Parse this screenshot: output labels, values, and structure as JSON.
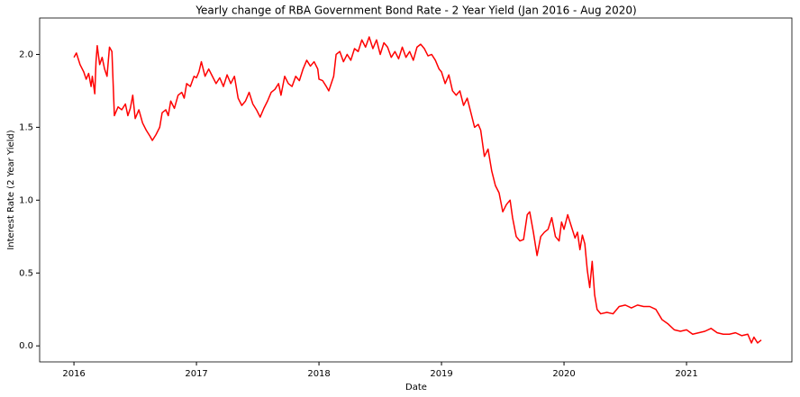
{
  "chart_data": {
    "type": "line",
    "title": "Yearly change of RBA Government Bond Rate - 2 Year Yield (Jan 2016 - Aug 2020)",
    "xlabel": "Date",
    "ylabel": "Interest Rate (2 Year Yield)",
    "xlim": [
      2015.72,
      2021.86
    ],
    "xticks": [
      2016,
      2017,
      2018,
      2019,
      2020,
      2021
    ],
    "ylim": [
      -0.11,
      2.25
    ],
    "yticks": [
      {
        "value": 0,
        "label": "0.0"
      },
      0.5,
      {
        "value": 1,
        "label": "1.0"
      },
      1.5,
      {
        "value": 2,
        "label": "2.0"
      }
    ],
    "grid": false,
    "series": [
      {
        "name": "2 Year Yield",
        "color": "#ff0000",
        "x": [
          2016.0,
          2016.02,
          2016.05,
          2016.08,
          2016.1,
          2016.12,
          2016.14,
          2016.15,
          2016.17,
          2016.18,
          2016.19,
          2016.21,
          2016.23,
          2016.25,
          2016.27,
          2016.29,
          2016.31,
          2016.33,
          2016.36,
          2016.39,
          2016.42,
          2016.44,
          2016.46,
          2016.48,
          2016.5,
          2016.53,
          2016.56,
          2016.59,
          2016.62,
          2016.64,
          2016.67,
          2016.7,
          2016.72,
          2016.75,
          2016.77,
          2016.79,
          2016.82,
          2016.85,
          2016.88,
          2016.9,
          2016.92,
          2016.95,
          2016.98,
          2017.0,
          2017.02,
          2017.04,
          2017.07,
          2017.1,
          2017.13,
          2017.16,
          2017.19,
          2017.22,
          2017.25,
          2017.28,
          2017.31,
          2017.34,
          2017.37,
          2017.4,
          2017.43,
          2017.46,
          2017.49,
          2017.52,
          2017.55,
          2017.58,
          2017.61,
          2017.64,
          2017.67,
          2017.69,
          2017.72,
          2017.75,
          2017.78,
          2017.81,
          2017.84,
          2017.87,
          2017.9,
          2017.93,
          2017.96,
          2017.99,
          2018.0,
          2018.03,
          2018.06,
          2018.08,
          2018.1,
          2018.12,
          2018.14,
          2018.17,
          2018.2,
          2018.23,
          2018.26,
          2018.29,
          2018.32,
          2018.35,
          2018.38,
          2018.41,
          2018.44,
          2018.47,
          2018.5,
          2018.53,
          2018.56,
          2018.59,
          2018.62,
          2018.65,
          2018.68,
          2018.71,
          2018.74,
          2018.77,
          2018.8,
          2018.83,
          2018.86,
          2018.89,
          2018.92,
          2018.95,
          2018.98,
          2019.0,
          2019.03,
          2019.06,
          2019.09,
          2019.12,
          2019.15,
          2019.18,
          2019.21,
          2019.24,
          2019.27,
          2019.3,
          2019.32,
          2019.35,
          2019.38,
          2019.41,
          2019.44,
          2019.47,
          2019.5,
          2019.53,
          2019.56,
          2019.58,
          2019.61,
          2019.64,
          2019.67,
          2019.7,
          2019.72,
          2019.75,
          2019.78,
          2019.81,
          2019.84,
          2019.87,
          2019.9,
          2019.93,
          2019.96,
          2019.98,
          2020.0,
          2020.03,
          2020.06,
          2020.09,
          2020.11,
          2020.13,
          2020.15,
          2020.17,
          2020.19,
          2020.21,
          2020.23,
          2020.25,
          2020.27,
          2020.3,
          2020.35,
          2020.4,
          2020.45,
          2020.5,
          2020.55,
          2020.6,
          2020.65,
          2020.7,
          2020.75,
          2020.8,
          2020.85,
          2020.9,
          2020.95,
          2021.0,
          2021.05,
          2021.1,
          2021.15,
          2021.2,
          2021.25,
          2021.3,
          2021.35,
          2021.4,
          2021.45,
          2021.5,
          2021.53,
          2021.55,
          2021.58,
          2021.61
        ],
        "values": [
          1.98,
          2.01,
          1.93,
          1.88,
          1.83,
          1.87,
          1.78,
          1.85,
          1.73,
          1.95,
          2.06,
          1.93,
          1.98,
          1.9,
          1.85,
          2.05,
          2.02,
          1.58,
          1.64,
          1.62,
          1.66,
          1.58,
          1.63,
          1.72,
          1.56,
          1.62,
          1.53,
          1.48,
          1.44,
          1.41,
          1.45,
          1.5,
          1.6,
          1.62,
          1.58,
          1.68,
          1.63,
          1.72,
          1.74,
          1.7,
          1.8,
          1.78,
          1.85,
          1.84,
          1.88,
          1.95,
          1.85,
          1.9,
          1.85,
          1.8,
          1.84,
          1.78,
          1.86,
          1.8,
          1.85,
          1.7,
          1.65,
          1.68,
          1.74,
          1.66,
          1.62,
          1.57,
          1.63,
          1.68,
          1.74,
          1.76,
          1.8,
          1.72,
          1.85,
          1.8,
          1.78,
          1.85,
          1.82,
          1.9,
          1.96,
          1.92,
          1.95,
          1.9,
          1.83,
          1.82,
          1.78,
          1.75,
          1.8,
          1.85,
          2.0,
          2.02,
          1.95,
          2.0,
          1.96,
          2.04,
          2.02,
          2.1,
          2.05,
          2.12,
          2.04,
          2.1,
          2.0,
          2.08,
          2.05,
          1.98,
          2.02,
          1.97,
          2.05,
          1.98,
          2.02,
          1.96,
          2.05,
          2.07,
          2.04,
          1.99,
          2.0,
          1.96,
          1.9,
          1.88,
          1.8,
          1.86,
          1.75,
          1.72,
          1.75,
          1.65,
          1.7,
          1.6,
          1.5,
          1.52,
          1.48,
          1.3,
          1.35,
          1.2,
          1.1,
          1.05,
          0.92,
          0.97,
          1.0,
          0.88,
          0.75,
          0.72,
          0.73,
          0.9,
          0.92,
          0.78,
          0.62,
          0.75,
          0.78,
          0.8,
          0.88,
          0.75,
          0.72,
          0.85,
          0.8,
          0.9,
          0.82,
          0.74,
          0.78,
          0.66,
          0.76,
          0.7,
          0.52,
          0.4,
          0.58,
          0.35,
          0.25,
          0.22,
          0.23,
          0.22,
          0.27,
          0.28,
          0.26,
          0.28,
          0.27,
          0.27,
          0.25,
          0.18,
          0.15,
          0.11,
          0.1,
          0.11,
          0.08,
          0.09,
          0.1,
          0.12,
          0.09,
          0.08,
          0.08,
          0.09,
          0.07,
          0.08,
          0.02,
          0.06,
          0.02,
          0.04
        ]
      }
    ]
  }
}
